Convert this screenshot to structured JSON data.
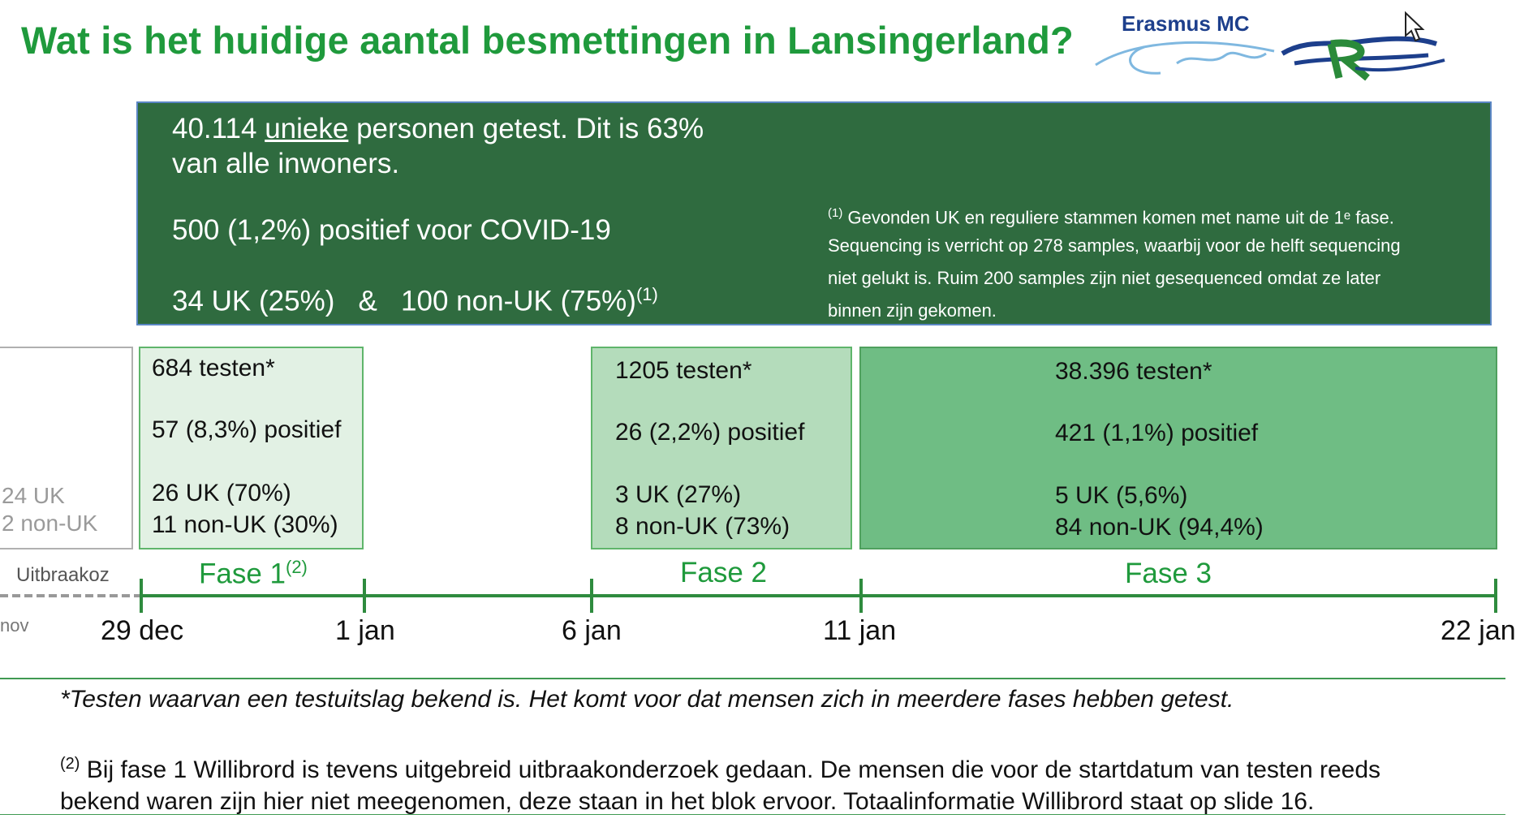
{
  "title": "Wat is het huidige aantal besmettingen in Lansingerland?",
  "logo": {
    "text": "Erasmus MC"
  },
  "summary": {
    "line1_num": "40.114",
    "line1_underlined": "unieke",
    "line1_rest": "personen getest. Dit is 63%",
    "line2": "van alle inwoners.",
    "line3": "500 (1,2%) positief voor COVID-19",
    "line4": "34 UK (25%)   &   100 non-UK (75%)",
    "line4_sup": "(1)",
    "note_sup": "(1)",
    "note_line1": "Gevonden UK en reguliere stammen komen met name uit de 1ᵉ fase.",
    "note_line2": "Sequencing is verricht op 278 samples, waarbij voor de helft sequencing",
    "note_line3": "niet gelukt is. Ruim 200 samples zijn niet gesequenced omdat ze later",
    "note_line4": "binnen zijn gekomen."
  },
  "pre_box": {
    "uk": "24 UK",
    "non_uk": "2 non-UK"
  },
  "phase1": {
    "tests": "684 testen*",
    "positive": "57 (8,3%) positief",
    "uk": "26 UK (70%)",
    "non_uk": "11 non-UK (30%)",
    "label": "Fase 1",
    "label_sup": "(2)"
  },
  "phase2": {
    "tests": "1205 testen*",
    "positive": "26 (2,2%) positief",
    "uk": "3 UK (27%)",
    "non_uk": "8 non-UK (73%)",
    "label": "Fase 2"
  },
  "phase3": {
    "tests": "38.396 testen*",
    "positive": "421 (1,1%) positief",
    "uk": "5 UK (5,6%)",
    "non_uk": "84 non-UK (94,4%)",
    "label": "Fase 3"
  },
  "timeline": {
    "uitbraak_label": "Uitbraakoz",
    "nov_label": "nov",
    "dates": [
      "29 dec",
      "1 jan",
      "6 jan",
      "11 jan",
      "22 jan"
    ]
  },
  "footnotes": {
    "star": "*Testen waarvan een testuitslag bekend is. Het komt voor dat mensen zich in meerdere fases hebben getest.",
    "two_sup": "(2)",
    "two_line1": "Bij fase 1 Willibrord is tevens uitgebreid uitbraakonderzoek gedaan. De mensen die voor de startdatum van testen reeds",
    "two_line2": "bekend waren zijn hier niet meegenomen, deze staan in het blok ervoor. Totaalinformatie Willibrord staat op slide 16."
  },
  "colors": {
    "title_green": "#1f9a3c",
    "summary_bg": "#2f6b3f",
    "phase1_bg": "#e2f1e4",
    "phase2_bg": "#b4dcbb",
    "phase3_bg": "#6fbd84"
  }
}
